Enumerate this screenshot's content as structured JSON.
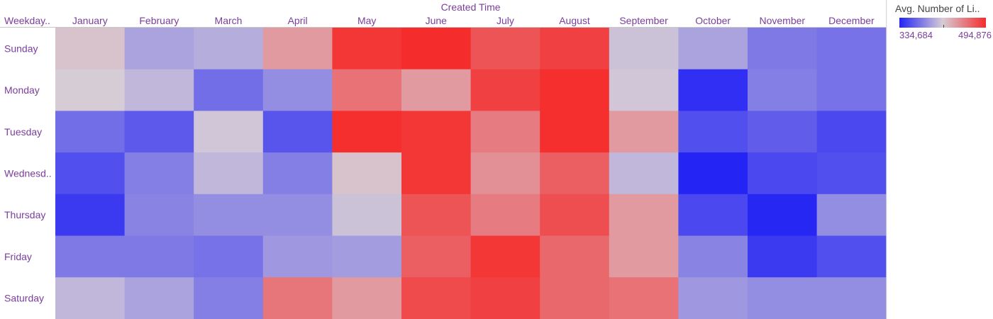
{
  "chart_data": {
    "type": "heatmap",
    "column_title": "Created Time",
    "row_header": "Weekday..",
    "columns": [
      "January",
      "February",
      "March",
      "April",
      "May",
      "June",
      "July",
      "August",
      "September",
      "October",
      "November",
      "December"
    ],
    "rows": [
      "Sunday",
      "Monday",
      "Tuesday",
      "Wednesd..",
      "Thursday",
      "Friday",
      "Saturday"
    ],
    "values": [
      [
        420000,
        395000,
        400000,
        440000,
        490000,
        494876,
        475000,
        485000,
        410000,
        395000,
        375000,
        372000
      ],
      [
        415000,
        405000,
        370000,
        385000,
        460000,
        440000,
        485000,
        494000,
        412000,
        340000,
        378000,
        372000
      ],
      [
        370000,
        360000,
        412000,
        358000,
        494000,
        490000,
        455000,
        494000,
        440000,
        355000,
        362000,
        352000
      ],
      [
        355000,
        378000,
        405000,
        378000,
        420000,
        490000,
        445000,
        470000,
        405000,
        334684,
        352000,
        355000
      ],
      [
        345000,
        380000,
        385000,
        385000,
        410000,
        475000,
        455000,
        478000,
        440000,
        352000,
        336000,
        385000
      ],
      [
        375000,
        375000,
        372000,
        390000,
        392000,
        470000,
        490000,
        465000,
        440000,
        380000,
        345000,
        355000
      ],
      [
        405000,
        395000,
        378000,
        458000,
        440000,
        480000,
        485000,
        465000,
        460000,
        390000,
        385000,
        385000
      ]
    ],
    "color_range": [
      334684,
      494876
    ],
    "colors": {
      "low": "#2424f5",
      "mid": "#d6ccd6",
      "high": "#f52c2c"
    }
  },
  "legend": {
    "title": "Avg. Number of Li..",
    "min_label": "334,684",
    "max_label": "494,876"
  }
}
